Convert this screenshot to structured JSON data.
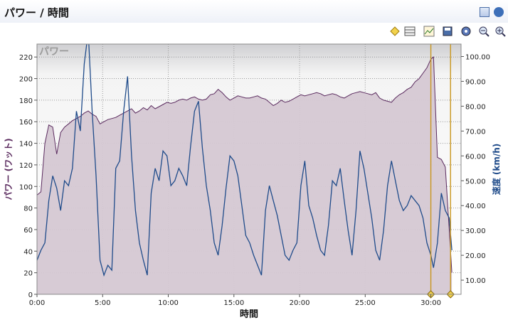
{
  "window": {
    "title": "パワー / 時間"
  },
  "toolbar": {
    "icons": [
      "marker-icon",
      "table-icon",
      "chart-view-icon",
      "save-icon",
      "settings-icon",
      "zoom-out-icon",
      "zoom-in-icon"
    ]
  },
  "colors": {
    "power_fill": "#d5c8d3",
    "power_line": "#5a2a5e",
    "speed_line": "#1f4b8a",
    "marker_line": "#c8961e",
    "axis_left_label": "#5a2a5e",
    "axis_right_label": "#1f4b8a"
  },
  "chart_data": {
    "type": "line",
    "title": "",
    "watermark": "パワー",
    "xlabel": "時間",
    "ylabel_left": "パワー (ワット)",
    "ylabel_right": "速度 (km/h)",
    "xlim": [
      0,
      32.3
    ],
    "ylim_left": [
      0,
      232
    ],
    "ylim_right": [
      4.3,
      105
    ],
    "x_ticks": [
      {
        "v": 0,
        "label": "0:00"
      },
      {
        "v": 5,
        "label": "5:00"
      },
      {
        "v": 10,
        "label": "10:00"
      },
      {
        "v": 15,
        "label": "15:00"
      },
      {
        "v": 20,
        "label": "20:00"
      },
      {
        "v": 25,
        "label": "25:00"
      },
      {
        "v": 30,
        "label": "30:00"
      }
    ],
    "y_left_ticks": [
      0,
      20,
      40,
      60,
      80,
      100,
      120,
      140,
      160,
      180,
      200,
      220
    ],
    "y_right_ticks": [
      {
        "v": 10,
        "label": "10.00"
      },
      {
        "v": 20,
        "label": "20.00"
      },
      {
        "v": 30,
        "label": "30.00"
      },
      {
        "v": 40,
        "label": "40.00"
      },
      {
        "v": 50,
        "label": "50.00"
      },
      {
        "v": 60,
        "label": "60.00"
      },
      {
        "v": 70,
        "label": "70.00"
      },
      {
        "v": 80,
        "label": "80.00"
      },
      {
        "v": 90,
        "label": "90.00"
      },
      {
        "v": 100,
        "label": "100.00"
      }
    ],
    "grid": true,
    "markers_x": [
      30.0,
      31.5
    ],
    "series": [
      {
        "name": "パワー",
        "axis": "left",
        "style": "area",
        "x": [
          0,
          0.3,
          0.6,
          0.9,
          1.2,
          1.5,
          1.8,
          2.1,
          2.4,
          2.7,
          3.0,
          3.3,
          3.6,
          3.9,
          4.2,
          4.5,
          4.8,
          5.1,
          5.4,
          5.7,
          6.0,
          6.3,
          6.6,
          6.9,
          7.2,
          7.5,
          7.8,
          8.1,
          8.4,
          8.7,
          9.0,
          9.3,
          9.6,
          9.9,
          10.2,
          10.5,
          10.8,
          11.1,
          11.4,
          11.7,
          12.0,
          12.3,
          12.6,
          12.9,
          13.2,
          13.5,
          13.8,
          14.1,
          14.4,
          14.7,
          15.0,
          15.3,
          15.6,
          15.9,
          16.2,
          16.5,
          16.8,
          17.1,
          17.4,
          17.7,
          18.0,
          18.3,
          18.6,
          18.9,
          19.2,
          19.5,
          19.8,
          20.1,
          20.4,
          20.7,
          21.0,
          21.3,
          21.6,
          21.9,
          22.2,
          22.5,
          22.8,
          23.1,
          23.4,
          23.7,
          24.0,
          24.3,
          24.6,
          24.9,
          25.2,
          25.5,
          25.8,
          26.1,
          26.4,
          26.7,
          27.0,
          27.3,
          27.6,
          27.9,
          28.2,
          28.5,
          28.8,
          29.1,
          29.4,
          29.7,
          30.0,
          30.2,
          30.5,
          30.8,
          31.1,
          31.4,
          31.6
        ],
        "values": [
          92,
          95,
          140,
          157,
          155,
          130,
          150,
          155,
          158,
          161,
          163,
          165,
          168,
          170,
          167,
          165,
          158,
          160,
          162,
          163,
          164,
          166,
          168,
          170,
          172,
          168,
          170,
          173,
          171,
          175,
          172,
          174,
          176,
          178,
          177,
          178,
          180,
          181,
          180,
          182,
          183,
          181,
          180,
          181,
          185,
          186,
          190,
          187,
          183,
          180,
          182,
          184,
          183,
          182,
          182,
          183,
          184,
          182,
          181,
          178,
          175,
          177,
          180,
          178,
          179,
          181,
          183,
          185,
          184,
          185,
          186,
          187,
          186,
          184,
          185,
          186,
          185,
          183,
          182,
          184,
          186,
          187,
          188,
          187,
          186,
          185,
          187,
          182,
          180,
          179,
          178,
          182,
          185,
          187,
          190,
          192,
          197,
          200,
          205,
          210,
          218,
          220,
          127,
          125,
          118,
          60,
          20
        ]
      },
      {
        "name": "速度",
        "axis": "right",
        "style": "line",
        "x": [
          0,
          0.3,
          0.6,
          0.9,
          1.2,
          1.5,
          1.8,
          2.1,
          2.4,
          2.7,
          3.0,
          3.3,
          3.6,
          3.9,
          4.2,
          4.5,
          4.8,
          5.1,
          5.4,
          5.7,
          6.0,
          6.3,
          6.6,
          6.9,
          7.2,
          7.5,
          7.8,
          8.1,
          8.4,
          8.7,
          9.0,
          9.3,
          9.6,
          9.9,
          10.2,
          10.5,
          10.8,
          11.1,
          11.4,
          11.7,
          12.0,
          12.3,
          12.6,
          12.9,
          13.2,
          13.5,
          13.8,
          14.1,
          14.4,
          14.7,
          15.0,
          15.3,
          15.6,
          15.9,
          16.2,
          16.5,
          16.8,
          17.1,
          17.4,
          17.7,
          18.0,
          18.3,
          18.6,
          18.9,
          19.2,
          19.5,
          19.8,
          20.1,
          20.4,
          20.7,
          21.0,
          21.3,
          21.6,
          21.9,
          22.2,
          22.5,
          22.8,
          23.1,
          23.4,
          23.7,
          24.0,
          24.3,
          24.6,
          24.9,
          25.2,
          25.5,
          25.8,
          26.1,
          26.4,
          26.7,
          27.0,
          27.3,
          27.6,
          27.9,
          28.2,
          28.5,
          28.8,
          29.1,
          29.4,
          29.7,
          30.0,
          30.2,
          30.5,
          30.8,
          31.1,
          31.4,
          31.6
        ],
        "values": [
          18,
          22,
          25,
          42,
          52,
          47,
          38,
          50,
          48,
          55,
          78,
          70,
          97,
          110,
          78,
          52,
          18,
          12,
          16,
          14,
          55,
          58,
          78,
          92,
          60,
          38,
          25,
          18,
          12,
          45,
          55,
          50,
          62,
          60,
          48,
          50,
          55,
          52,
          48,
          64,
          78,
          82,
          63,
          48,
          38,
          25,
          20,
          32,
          47,
          60,
          58,
          52,
          40,
          28,
          25,
          20,
          16,
          12,
          38,
          48,
          42,
          36,
          28,
          20,
          18,
          22,
          25,
          48,
          58,
          40,
          35,
          28,
          22,
          20,
          32,
          50,
          48,
          55,
          42,
          30,
          20,
          38,
          62,
          55,
          45,
          35,
          22,
          18,
          30,
          48,
          58,
          50,
          42,
          38,
          40,
          44,
          42,
          40,
          35,
          25,
          20,
          15,
          25,
          45,
          38,
          35,
          22
        ]
      }
    ]
  }
}
